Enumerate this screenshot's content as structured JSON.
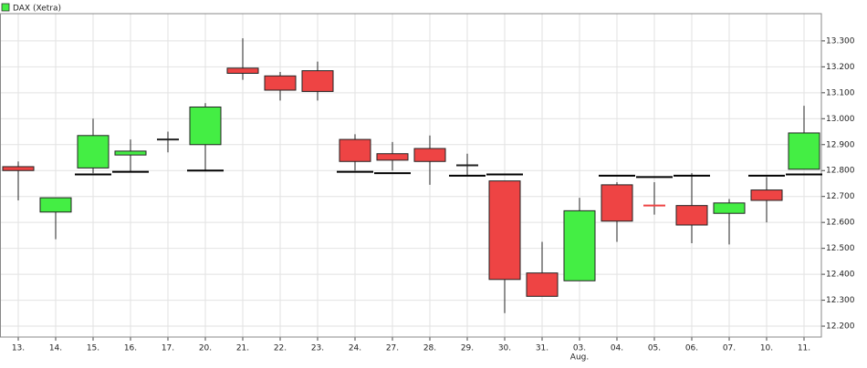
{
  "chart_data": {
    "type": "candlestick",
    "legend": "DAX (Xetra)",
    "legend_color": "#44ee44",
    "up_color": "#44ee44",
    "down_color": "#ee4444",
    "categories": [
      "13.",
      "14.",
      "15.",
      "16.",
      "17.",
      "20.",
      "21.",
      "22.",
      "23.",
      "24.",
      "27.",
      "28.",
      "29.",
      "30.",
      "31.",
      "03.",
      "04.",
      "05.",
      "06.",
      "07.",
      "10.",
      "11."
    ],
    "sublabels": [
      null,
      null,
      null,
      null,
      null,
      null,
      null,
      null,
      null,
      null,
      null,
      null,
      null,
      null,
      null,
      "Aug.",
      null,
      null,
      null,
      null,
      null,
      null
    ],
    "open": [
      12815,
      12640,
      12810,
      12860,
      12920,
      12900,
      13195,
      13165,
      13185,
      12920,
      12865,
      12885,
      12820,
      12760,
      12405,
      12375,
      12745,
      12665,
      12665,
      12635,
      12725,
      12805
    ],
    "high": [
      12835,
      12695,
      13000,
      12920,
      12950,
      13060,
      13310,
      13180,
      13220,
      12940,
      12910,
      12935,
      12865,
      12760,
      12525,
      12695,
      12755,
      12755,
      12790,
      12690,
      12775,
      13050
    ],
    "low": [
      12685,
      12535,
      12790,
      12795,
      12870,
      12800,
      13150,
      13070,
      13070,
      12800,
      12800,
      12745,
      12780,
      12250,
      12315,
      12375,
      12525,
      12630,
      12520,
      12515,
      12600,
      12805
    ],
    "close": [
      12800,
      12695,
      12935,
      12875,
      12920,
      13045,
      13175,
      13110,
      13105,
      12835,
      12840,
      12835,
      12820,
      12380,
      12315,
      12645,
      12605,
      12660,
      12590,
      12675,
      12685,
      12945
    ],
    "overlay": {
      "color": "#000000",
      "values": [
        null,
        null,
        12785,
        12795,
        null,
        12800,
        null,
        null,
        null,
        12795,
        12790,
        null,
        12780,
        12785,
        null,
        null,
        12780,
        12775,
        12780,
        null,
        12780,
        12785
      ]
    },
    "ylim": [
      12158,
      13405
    ],
    "yticks": [
      {
        "value": 12200,
        "label": "12.200"
      },
      {
        "value": 12300,
        "label": "12.300"
      },
      {
        "value": 12400,
        "label": "12.400"
      },
      {
        "value": 12500,
        "label": "12.500"
      },
      {
        "value": 12600,
        "label": "12.600"
      },
      {
        "value": 12700,
        "label": "12.700"
      },
      {
        "value": 12800,
        "label": "12.800"
      },
      {
        "value": 12900,
        "label": "12.900"
      },
      {
        "value": 13000,
        "label": "13.000"
      },
      {
        "value": 13100,
        "label": "13.100"
      },
      {
        "value": 13200,
        "label": "13.200"
      },
      {
        "value": 13300,
        "label": "13.300"
      }
    ],
    "grid": true
  }
}
